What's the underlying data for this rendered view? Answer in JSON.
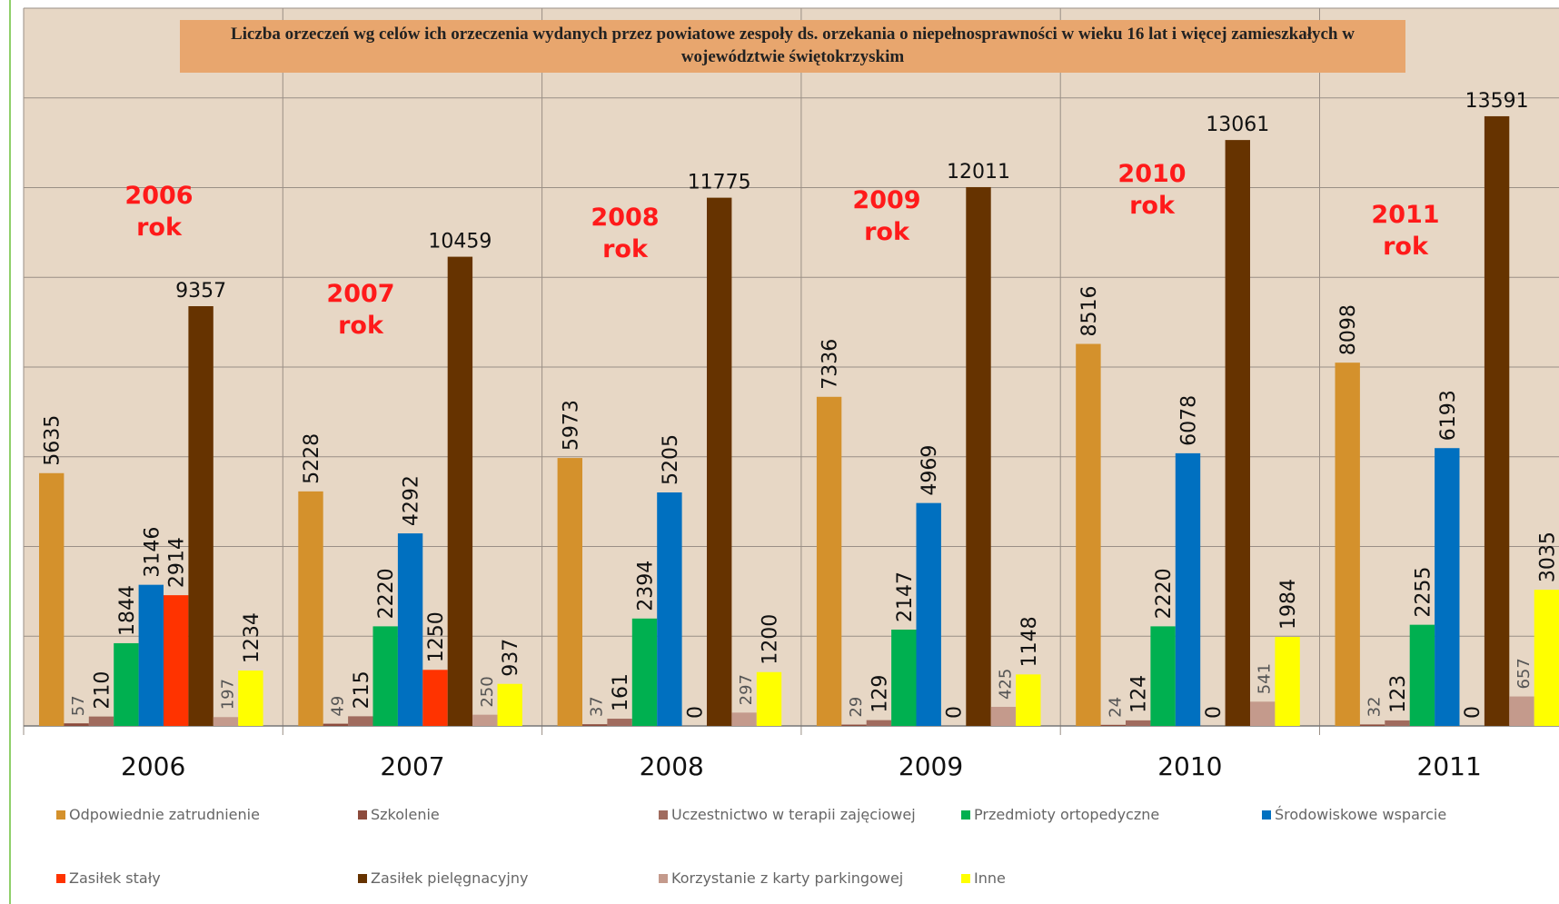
{
  "chart_data": {
    "type": "bar",
    "title": "Liczba orzeczeń wg celów ich orzeczenia wydanych przez powiatowe zespoły ds. orzekania o niepełnosprawności w wieku 16 lat i więcej zamieszkałych w województwie świętokrzyskim",
    "categories": [
      "2006",
      "2007",
      "2008",
      "2009",
      "2010",
      "2011"
    ],
    "series": [
      {
        "name": "Odpowiednie zatrudnienie",
        "color": "#d4912c",
        "values": [
          5635,
          5228,
          5973,
          7336,
          8516,
          8098
        ]
      },
      {
        "name": "Szkolenie",
        "color": "#8c4b3c",
        "values": [
          57,
          49,
          37,
          29,
          24,
          32
        ]
      },
      {
        "name": "Uczestnictwo w terapii zajęciowej",
        "color": "#a06b5e",
        "values": [
          210,
          215,
          161,
          129,
          124,
          123
        ]
      },
      {
        "name": "Przedmioty ortopedyczne",
        "color": "#00b050",
        "values": [
          1844,
          2220,
          2394,
          2147,
          2220,
          2255
        ]
      },
      {
        "name": "Środowiskowe wsparcie",
        "color": "#0070c0",
        "values": [
          3146,
          4292,
          5205,
          4969,
          6078,
          6193
        ]
      },
      {
        "name": "Zasiłek stały",
        "color": "#ff3300",
        "values": [
          2914,
          1250,
          0,
          0,
          0,
          0
        ]
      },
      {
        "name": "Zasiłek pielęgnacyjny",
        "color": "#663300",
        "values": [
          9357,
          10459,
          11775,
          12011,
          13061,
          13591
        ]
      },
      {
        "name": "Korzystanie z karty parkingowej",
        "color": "#c49a8c",
        "values": [
          197,
          250,
          297,
          425,
          541,
          657
        ]
      },
      {
        "name": "Inne",
        "color": "#ffff00",
        "values": [
          1234,
          937,
          1200,
          1148,
          1984,
          3035
        ]
      }
    ],
    "annotations": [
      [
        "2006",
        "rok"
      ],
      [
        "2007",
        "rok"
      ],
      [
        "2008",
        "rok"
      ],
      [
        "2009",
        "rok"
      ],
      [
        "2010",
        "rok"
      ],
      [
        "2011",
        "rok"
      ]
    ],
    "ylim": [
      0,
      16000
    ],
    "yticks": [
      0,
      2000,
      4000,
      6000,
      8000,
      10000,
      12000,
      14000,
      16000
    ],
    "grid": true
  }
}
